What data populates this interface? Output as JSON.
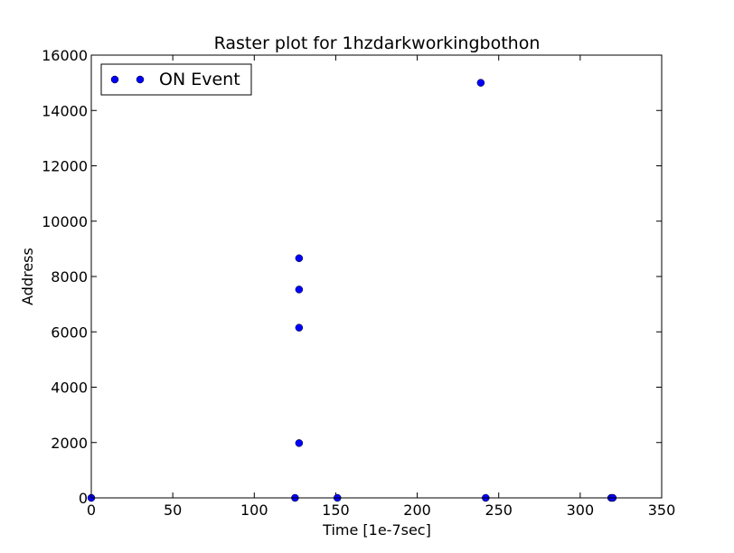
{
  "chart_data": {
    "type": "scatter",
    "title": "Raster plot for 1hzdarkworkingbothon",
    "xlabel": "Time [1e-7sec]",
    "ylabel": "Address",
    "xlim": [
      0,
      350
    ],
    "ylim": [
      0,
      16000
    ],
    "xticks": [
      0,
      50,
      100,
      150,
      200,
      250,
      300,
      350
    ],
    "yticks": [
      0,
      2000,
      4000,
      6000,
      8000,
      10000,
      12000,
      14000,
      16000
    ],
    "grid": false,
    "legend_position": "top-left",
    "series": [
      {
        "name": "ON Event",
        "color": "#0000ff",
        "marker": "circle",
        "points": [
          [
            0,
            0
          ],
          [
            125,
            0
          ],
          [
            127.5,
            1980
          ],
          [
            127.5,
            6150
          ],
          [
            127.5,
            7530
          ],
          [
            127.5,
            8660
          ],
          [
            151,
            0
          ],
          [
            239,
            15000
          ],
          [
            242,
            0
          ],
          [
            319,
            0
          ],
          [
            320,
            0
          ]
        ]
      }
    ]
  }
}
